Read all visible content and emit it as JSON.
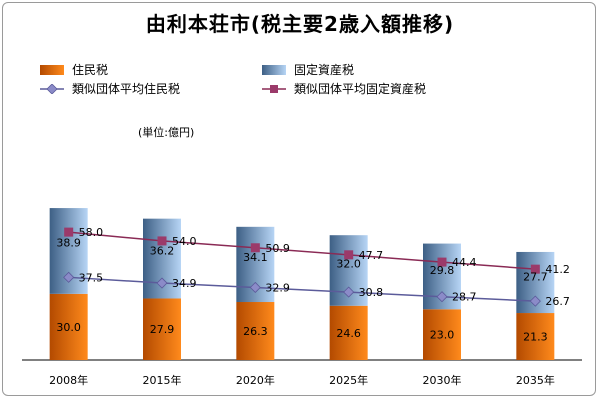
{
  "chart_data": {
    "type": "bar",
    "stacked": true,
    "title": "由利本荘市(税主要2歳入額推移)",
    "unit": "(単位:億円)",
    "categories": [
      "2008年",
      "2015年",
      "2020年",
      "2025年",
      "2030年",
      "2035年"
    ],
    "series": [
      {
        "name": "住民税",
        "kind": "bar",
        "values": [
          30.0,
          27.9,
          26.3,
          24.6,
          23.0,
          21.3
        ],
        "labels": [
          "30.0",
          "27.9",
          "26.3",
          "24.6",
          "23.0",
          "21.3"
        ]
      },
      {
        "name": "固定資産税",
        "kind": "bar",
        "values": [
          38.9,
          36.2,
          34.1,
          32.0,
          29.8,
          27.7
        ],
        "labels": [
          "38.9",
          "36.2",
          "34.1",
          "32.0",
          "29.8",
          "27.7"
        ]
      },
      {
        "name": "類似団体平均住民税",
        "kind": "line",
        "marker": "diamond",
        "values": [
          37.5,
          34.9,
          32.9,
          30.8,
          28.7,
          26.7
        ],
        "labels": [
          "37.5",
          "34.9",
          "32.9",
          "30.8",
          "28.7",
          "26.7"
        ]
      },
      {
        "name": "類似団体平均固定資産税",
        "kind": "line",
        "marker": "square",
        "values": [
          58.0,
          54.0,
          50.9,
          47.7,
          44.4,
          41.2
        ],
        "labels": [
          "58.0",
          "54.0",
          "50.9",
          "47.7",
          "44.4",
          "41.2"
        ]
      }
    ],
    "ylim": [
      0,
      75
    ],
    "grid": false,
    "legend": "top-left",
    "colors": {
      "bar_bottom_dark": "#b34a00",
      "bar_bottom_light": "#ff8a1c",
      "bar_top_dark": "#3d5f85",
      "bar_top_light": "#b7d5f5",
      "line_resident": "#5b5b9a",
      "marker_resident": "#8b8bc8",
      "line_property": "#8a2a55",
      "marker_property": "#9b3a6a"
    }
  }
}
